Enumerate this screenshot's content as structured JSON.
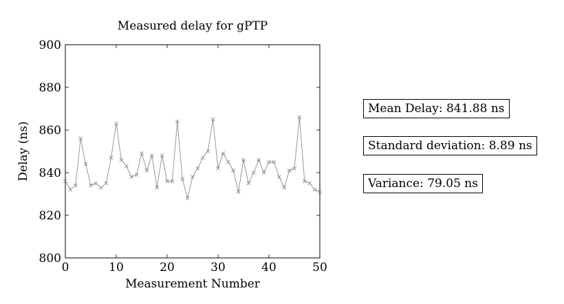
{
  "chart_data": {
    "type": "line",
    "title": "Measured delay for gPTP",
    "xlabel": "Measurement Number",
    "ylabel": "Delay (ns)",
    "xlim": [
      0,
      50
    ],
    "ylim": [
      800,
      900
    ],
    "xticks": [
      0,
      10,
      20,
      30,
      40,
      50
    ],
    "yticks": [
      800,
      820,
      840,
      860,
      880,
      900
    ],
    "grid": false,
    "marker": "x",
    "line_color": "#8c8c8c",
    "series": [
      {
        "x": [
          0,
          1,
          2,
          3,
          4,
          5,
          6,
          7,
          8,
          9,
          10,
          11,
          12,
          13,
          14,
          15,
          16,
          17,
          18,
          19,
          20,
          21,
          22,
          23,
          24,
          25,
          26,
          27,
          28,
          29,
          30,
          31,
          32,
          33,
          34,
          35,
          36,
          37,
          38,
          39,
          40,
          41,
          42,
          43,
          44,
          45,
          46,
          47,
          48,
          49,
          50
        ],
        "values": [
          836,
          832,
          834,
          856,
          844,
          834,
          835,
          833,
          835,
          847,
          863,
          846,
          843,
          838,
          839,
          849,
          841,
          848,
          833,
          848,
          836,
          836,
          864,
          837,
          828,
          838,
          842,
          847,
          850,
          865,
          842,
          849,
          845,
          841,
          831,
          846,
          835,
          840,
          846,
          840,
          845,
          845,
          838,
          833,
          841,
          842,
          866,
          836,
          835,
          832,
          831
        ]
      }
    ]
  },
  "stats": {
    "mean": "Mean Delay: 841.88 ns",
    "std": "Standard deviation: 8.89 ns",
    "variance": "Variance: 79.05 ns"
  }
}
